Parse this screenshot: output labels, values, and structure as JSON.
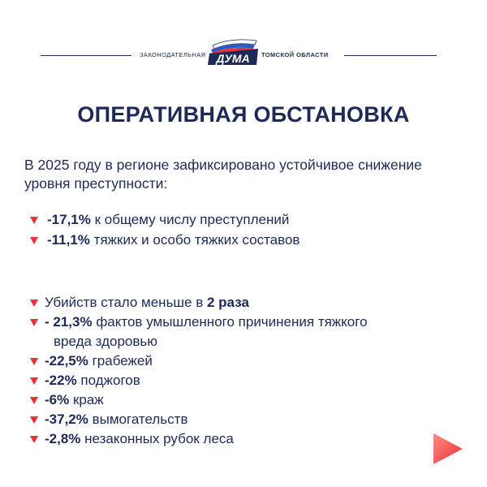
{
  "header": {
    "left_text": "ЗАКОНОДАТЕЛЬНАЯ",
    "logo_text": "ДУМА",
    "right_text": "ТОМСКОЙ ОБЛАСТИ"
  },
  "title": "ОПЕРАТИВНАЯ ОБСТАНОВКА",
  "intro": "В 2025 году в регионе зафиксировано устойчивое снижение уровня преступности:",
  "group1": [
    {
      "value": "-17,1%",
      "text": " к общему числу преступлений"
    },
    {
      "value": "-11,1%",
      "text": " тяжких и особо тяжких составов"
    }
  ],
  "group2": [
    {
      "lead": "Убийств стало меньше в ",
      "value": "2 раза"
    },
    {
      "value": "- 21,3%",
      "text": " фактов умышленного причинения тяжкого",
      "text2": "вреда здоровью"
    },
    {
      "value": "-22,5%",
      "text": " грабежей"
    },
    {
      "value": "-22%",
      "text": " поджогов"
    },
    {
      "value": "-6%",
      "text": " краж"
    },
    {
      "value": "-37,2%",
      "text": " вымогательств"
    },
    {
      "value": "-2,8%",
      "text": " незаконных рубок леса"
    }
  ],
  "colors": {
    "navy": "#1d2a57",
    "accent_red": "#e6333a",
    "flag_blue": "#2e5cb8"
  },
  "icons": {
    "bullet": "red-down-triangle-icon",
    "next": "next-arrow-icon"
  }
}
